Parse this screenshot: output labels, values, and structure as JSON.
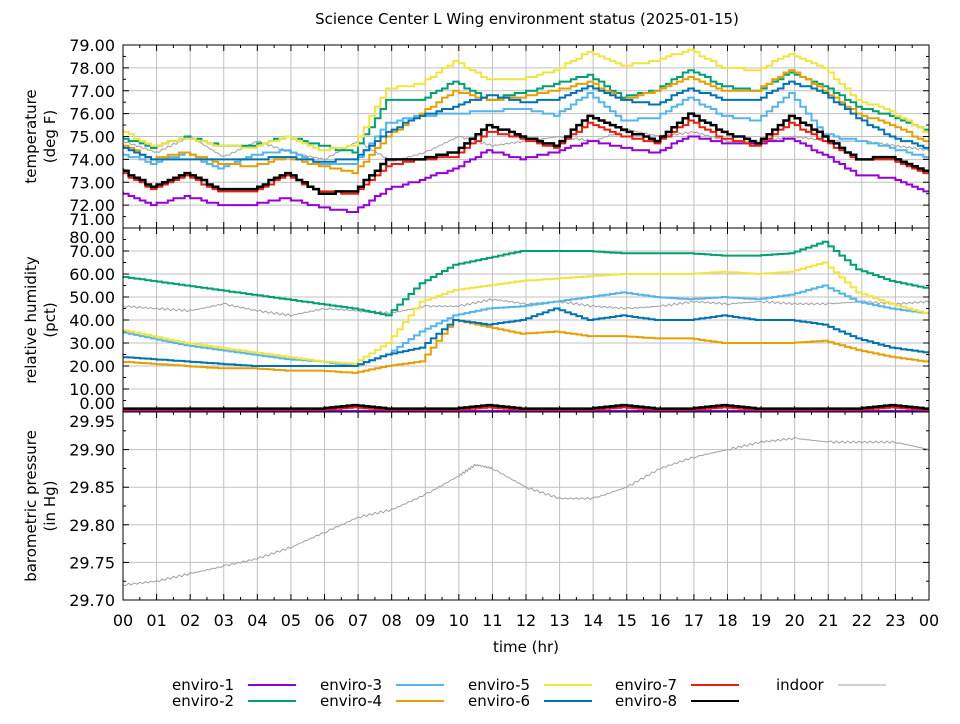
{
  "chart_data": [
    {
      "type": "line",
      "title": "Science Center L Wing environment status (2025-01-15)",
      "panel": "temperature",
      "ylabel": [
        "temperature",
        "(deg F)"
      ],
      "ylim": [
        71,
        79
      ],
      "yticks": [
        "71.00",
        "72.00",
        "73.00",
        "74.00",
        "75.00",
        "76.00",
        "77.00",
        "78.00",
        "79.00"
      ],
      "x": [
        0,
        1,
        2,
        3,
        4,
        5,
        6,
        7,
        8,
        9,
        10,
        11,
        12,
        13,
        14,
        15,
        16,
        17,
        18,
        19,
        20,
        21,
        22,
        23,
        24
      ],
      "series": [
        {
          "name": "enviro-1",
          "values": [
            72.6,
            72.0,
            72.4,
            72.0,
            72.0,
            72.3,
            71.9,
            71.7,
            72.7,
            73.1,
            73.6,
            74.4,
            74.0,
            74.3,
            74.8,
            74.5,
            74.3,
            75.0,
            74.7,
            74.7,
            74.9,
            74.2,
            73.3,
            73.2,
            72.6
          ]
        },
        {
          "name": "enviro-2",
          "values": [
            75.0,
            74.5,
            75.0,
            74.6,
            74.6,
            75.0,
            74.6,
            74.3,
            76.6,
            76.6,
            77.4,
            76.6,
            76.9,
            77.3,
            77.7,
            76.7,
            77.0,
            77.9,
            77.2,
            77.0,
            77.8,
            77.2,
            76.3,
            75.9,
            75.3
          ]
        },
        {
          "name": "enviro-3",
          "values": [
            74.3,
            73.8,
            74.3,
            73.6,
            74.2,
            74.4,
            73.8,
            73.8,
            75.6,
            75.9,
            76.0,
            76.1,
            76.2,
            75.9,
            76.9,
            75.7,
            75.8,
            76.7,
            75.9,
            75.7,
            76.9,
            75.1,
            74.8,
            74.5,
            74.1
          ]
        },
        {
          "name": "enviro-4",
          "values": [
            74.7,
            74.0,
            74.3,
            73.8,
            73.7,
            74.1,
            73.7,
            73.4,
            75.0,
            76.0,
            77.0,
            76.6,
            76.7,
            77.0,
            77.4,
            76.6,
            77.0,
            77.6,
            77.0,
            77.0,
            77.9,
            77.0,
            76.0,
            75.5,
            74.8
          ]
        },
        {
          "name": "enviro-5",
          "values": [
            75.3,
            74.6,
            74.9,
            74.6,
            74.5,
            75.0,
            74.4,
            74.6,
            77.1,
            77.3,
            78.3,
            77.5,
            77.5,
            77.9,
            78.7,
            78.1,
            78.3,
            78.8,
            78.0,
            77.9,
            78.6,
            78.0,
            76.6,
            76.1,
            75.2
          ]
        },
        {
          "name": "enviro-6",
          "values": [
            74.6,
            74.0,
            74.0,
            74.0,
            74.0,
            74.1,
            73.9,
            74.0,
            75.2,
            75.9,
            76.3,
            76.8,
            76.5,
            76.6,
            77.2,
            76.6,
            76.4,
            77.1,
            76.6,
            76.6,
            77.4,
            76.9,
            75.8,
            75.0,
            74.5
          ]
        },
        {
          "name": "enviro-7",
          "values": [
            73.5,
            72.7,
            73.3,
            72.6,
            72.6,
            73.3,
            72.6,
            72.5,
            73.7,
            74.0,
            74.1,
            75.2,
            74.9,
            74.5,
            75.6,
            75.0,
            74.7,
            75.7,
            74.9,
            74.6,
            75.6,
            74.8,
            74.0,
            74.0,
            73.4
          ]
        },
        {
          "name": "enviro-8",
          "values": [
            73.6,
            72.8,
            73.4,
            72.7,
            72.7,
            73.4,
            72.5,
            72.6,
            74.0,
            74.0,
            74.3,
            75.5,
            75.0,
            74.6,
            75.9,
            75.3,
            74.8,
            76.0,
            75.2,
            74.7,
            75.9,
            75.0,
            74.0,
            74.1,
            73.5
          ]
        },
        {
          "name": "indoor",
          "values": [
            74.8,
            74.3,
            75.0,
            74.1,
            74.8,
            74.3,
            74.0,
            74.8,
            73.9,
            74.3,
            75.0,
            74.6,
            74.8,
            75.0,
            74.8,
            75.3,
            75.0,
            75.2,
            74.8,
            74.8,
            75.0,
            74.8,
            74.8,
            74.6,
            74.4
          ]
        }
      ]
    },
    {
      "type": "line",
      "panel": "humidity",
      "ylabel": [
        "relative humidity",
        "(pct)"
      ],
      "ylim": [
        0,
        80
      ],
      "yticks": [
        "0.00",
        "10.00",
        "20.00",
        "30.00",
        "40.00",
        "50.00",
        "60.00",
        "70.00",
        "80.00"
      ],
      "x": [
        0,
        1,
        2,
        3,
        4,
        5,
        6,
        7,
        8,
        9,
        10,
        11,
        12,
        13,
        14,
        15,
        16,
        17,
        18,
        19,
        20,
        21,
        22,
        23,
        24
      ],
      "series": [
        {
          "name": "enviro-1",
          "values": [
            0.5,
            0.5,
            0.5,
            0.5,
            0.5,
            0.5,
            0.5,
            0.5,
            0.5,
            0.5,
            0.5,
            0.5,
            0.5,
            0.5,
            0.5,
            0.5,
            0.5,
            0.5,
            0.5,
            0.5,
            0.5,
            0.5,
            0.5,
            0.5,
            0.5
          ]
        },
        {
          "name": "enviro-2",
          "values": [
            59,
            57,
            55,
            53,
            51,
            49,
            47,
            45,
            42,
            56,
            64,
            67,
            70,
            70,
            70,
            69,
            69,
            69,
            68,
            68,
            69,
            74,
            62,
            57,
            54
          ]
        },
        {
          "name": "enviro-3",
          "values": [
            35,
            32,
            29,
            27,
            25,
            23,
            22,
            20,
            25,
            35,
            42,
            45,
            46,
            48,
            50,
            52,
            50,
            49,
            50,
            49,
            51,
            55,
            48,
            45,
            43
          ]
        },
        {
          "name": "enviro-4",
          "values": [
            22,
            21,
            20,
            19,
            19,
            18,
            18,
            17,
            20,
            22,
            40,
            37,
            34,
            35,
            33,
            33,
            32,
            32,
            30,
            30,
            30,
            31,
            27,
            24,
            22
          ]
        },
        {
          "name": "enviro-5",
          "values": [
            36,
            33,
            30,
            28,
            26,
            24,
            22,
            21,
            30,
            48,
            53,
            55,
            57,
            58,
            59,
            60,
            60,
            60,
            61,
            60,
            61,
            65,
            52,
            47,
            43
          ]
        },
        {
          "name": "enviro-6",
          "values": [
            24,
            23,
            22,
            21,
            20,
            20,
            20,
            20,
            25,
            28,
            40,
            38,
            40,
            45,
            40,
            42,
            40,
            40,
            42,
            40,
            40,
            38,
            32,
            28,
            26
          ]
        },
        {
          "name": "enviro-7",
          "values": [
            1,
            1,
            1,
            1,
            1,
            1,
            1,
            2,
            1,
            1,
            1,
            2,
            1,
            1,
            1,
            2,
            1,
            1,
            2,
            1,
            1,
            1,
            1,
            2,
            1
          ]
        },
        {
          "name": "enviro-8",
          "values": [
            1.5,
            1.5,
            1.5,
            1.5,
            1.5,
            1.5,
            1.5,
            3,
            1.5,
            1.5,
            1.5,
            3,
            1.5,
            1.5,
            1.5,
            3,
            1.5,
            1.5,
            3,
            1.5,
            1.5,
            1.5,
            1.5,
            3,
            1.5
          ]
        },
        {
          "name": "indoor",
          "values": [
            46,
            45,
            44,
            47,
            44,
            42,
            45,
            44,
            43,
            46,
            46,
            49,
            47,
            48,
            46,
            45,
            46,
            48,
            47,
            48,
            47,
            47,
            48,
            47,
            48
          ]
        }
      ]
    },
    {
      "type": "line",
      "panel": "pressure",
      "ylabel": [
        "barometric pressure",
        "(in Hg)"
      ],
      "xlabel": "time (hr)",
      "ylim": [
        29.7,
        29.95
      ],
      "yticks": [
        "29.70",
        "29.75",
        "29.80",
        "29.85",
        "29.90",
        "29.95"
      ],
      "xticks": [
        "00",
        "01",
        "02",
        "03",
        "04",
        "05",
        "06",
        "07",
        "08",
        "09",
        "10",
        "11",
        "12",
        "13",
        "14",
        "15",
        "16",
        "17",
        "18",
        "19",
        "20",
        "21",
        "22",
        "23",
        "00"
      ],
      "x": [
        0,
        1,
        2,
        3,
        4,
        5,
        6,
        7,
        8,
        9,
        10,
        10.5,
        11,
        12,
        13,
        14,
        15,
        16,
        17,
        18,
        19,
        20,
        21,
        22,
        23,
        24
      ],
      "series": [
        {
          "name": "indoor",
          "values": [
            29.72,
            29.725,
            29.735,
            29.745,
            29.755,
            29.77,
            29.79,
            29.81,
            29.82,
            29.84,
            29.865,
            29.88,
            29.875,
            29.85,
            29.835,
            29.835,
            29.85,
            29.875,
            29.89,
            29.9,
            29.91,
            29.915,
            29.91,
            29.91,
            29.91,
            29.9
          ]
        }
      ]
    }
  ],
  "legend": {
    "placement": "bottom",
    "entries": [
      {
        "name": "enviro-1",
        "color": "#9400d3"
      },
      {
        "name": "enviro-2",
        "color": "#009e73"
      },
      {
        "name": "enviro-3",
        "color": "#56b4e9"
      },
      {
        "name": "enviro-4",
        "color": "#e69f00"
      },
      {
        "name": "enviro-5",
        "color": "#f0e442"
      },
      {
        "name": "enviro-6",
        "color": "#0072b2"
      },
      {
        "name": "enviro-7",
        "color": "#e51e10"
      },
      {
        "name": "enviro-8",
        "color": "#000000"
      },
      {
        "name": "indoor",
        "color": "#a0a0a0"
      }
    ]
  }
}
